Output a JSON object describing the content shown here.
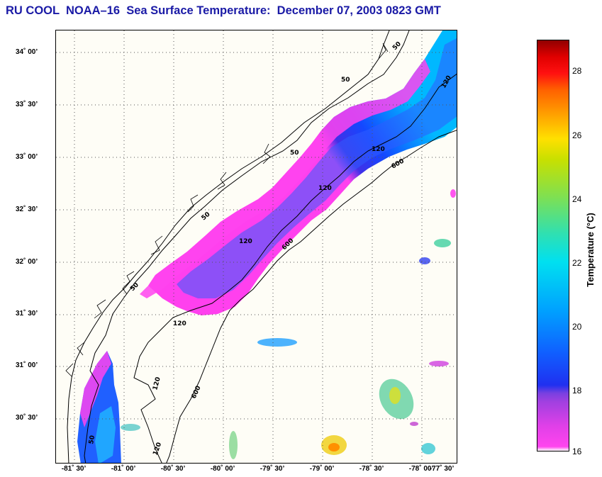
{
  "title": "RU COOL  NOAA–16  Sea Surface Temperature:  December 07, 2003 0823 GMT",
  "lat_labels": [
    "34˚ 00’",
    "33˚ 30’",
    "33˚ 00’",
    "32˚ 30’",
    "32˚ 00’",
    "31˚ 30’",
    "31˚ 00’",
    "30˚ 30’"
  ],
  "lon_labels": [
    "-81˚ 30’",
    "-81˚ 00’",
    "-80˚ 30’",
    "-80˚ 00’",
    "-79˚ 30’",
    "-79˚ 00’",
    "-78˚ 30’",
    "-78˚ 00’",
    "-77˚ 30’"
  ],
  "colorbar": {
    "label": "Temperature (°C)",
    "ticks": [
      "28",
      "26",
      "24",
      "22",
      "20",
      "18",
      "16"
    ],
    "min": 16,
    "max": 29
  },
  "contour_labels": {
    "c50": "50",
    "c120": "120",
    "c600": "600"
  },
  "colors": {
    "title": "#1a1aa6",
    "contour": "#000000",
    "grid": "#555555"
  }
}
